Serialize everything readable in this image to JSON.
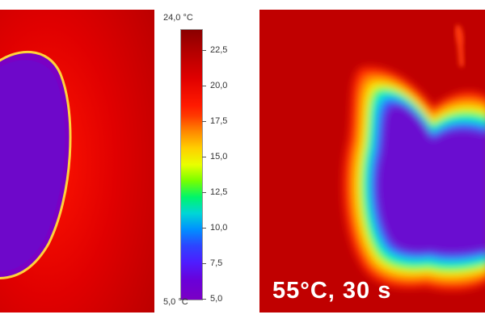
{
  "scale": {
    "max_label": "24,0 °C",
    "min_label": "5,0 °C",
    "ticks": [
      {
        "value": 22.5,
        "label": "22,5"
      },
      {
        "value": 20.0,
        "label": "20,0"
      },
      {
        "value": 17.5,
        "label": "17,5"
      },
      {
        "value": 15.0,
        "label": "15,0"
      },
      {
        "value": 12.5,
        "label": "12,5"
      },
      {
        "value": 10.0,
        "label": "10,0"
      },
      {
        "value": 7.5,
        "label": "7,5"
      },
      {
        "value": 5.0,
        "label": "5,0"
      }
    ],
    "range": [
      5.0,
      24.0
    ]
  },
  "caption": "55°C, 30 s",
  "colors": {
    "background_hot": "#c40000",
    "core_cold": "#6a10d0",
    "edge_warm": "#ff2a00"
  }
}
